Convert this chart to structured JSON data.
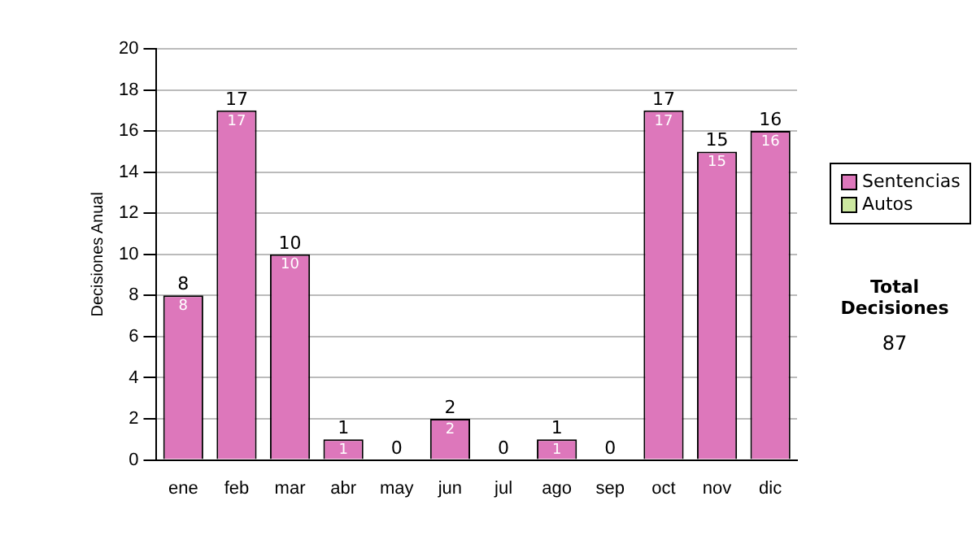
{
  "chart_data": {
    "type": "bar",
    "ylabel": "Decisiones Anual",
    "categories": [
      "ene",
      "feb",
      "mar",
      "abr",
      "may",
      "jun",
      "jul",
      "ago",
      "sep",
      "oct",
      "nov",
      "dic"
    ],
    "series": [
      {
        "name": "Sentencias",
        "color": "#dd77bb",
        "values": [
          8,
          17,
          10,
          1,
          0,
          2,
          0,
          1,
          0,
          17,
          15,
          16
        ],
        "value_labels": [
          "8",
          "17",
          "10",
          "1",
          null,
          "2",
          null,
          "1",
          null,
          "17",
          "15",
          "16"
        ]
      },
      {
        "name": "Autos",
        "color": "#cce8a0",
        "values": [
          0,
          0,
          0,
          0,
          0,
          0,
          0,
          0,
          0,
          0,
          0,
          0
        ]
      }
    ],
    "stacked": true,
    "totals": [
      "8",
      "17",
      "10",
      "1",
      "0",
      "2",
      "0",
      "1",
      "0",
      "17",
      "15",
      "16"
    ],
    "ylim": [
      0,
      20
    ],
    "yticks": [
      0,
      2,
      4,
      6,
      8,
      10,
      12,
      14,
      16,
      18,
      20
    ],
    "grid": "y",
    "legend": "right",
    "annotations": [
      "Total Decisiones",
      "87"
    ]
  }
}
